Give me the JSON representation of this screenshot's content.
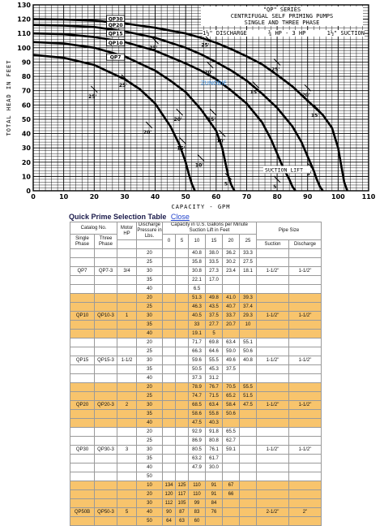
{
  "chart_data": {
    "type": "line",
    "title_lines": [
      "\"QP\" SERIES",
      "CENTRIFUGAL SELF PRIMING PUMPS",
      "SINGLE AND THREE PHASE"
    ],
    "discharge_label": "1½\" DISCHARGE",
    "hp_label": "¾ HP - 3 HP",
    "suction_label": "1½\" SUCTION",
    "xlabel": "CAPACITY - GPM",
    "ylabel": "TOTAL HEAD IN FEET",
    "xlim": [
      0,
      110
    ],
    "ylim": [
      0,
      130
    ],
    "x_ticks": [
      "0",
      "10",
      "20",
      "30",
      "40",
      "50",
      "60",
      "70",
      "80",
      "90",
      "100",
      "110"
    ],
    "y_ticks": [
      "0",
      "10",
      "20",
      "30",
      "40",
      "50",
      "60",
      "70",
      "80",
      "90",
      "100",
      "110",
      "120",
      "130"
    ],
    "grid": true,
    "suction_lift_label": "SUCTION LIFT",
    "watermark": "ZUNOBIE",
    "series": [
      {
        "name": "QP30",
        "x": [
          0,
          10,
          20,
          30,
          40,
          50,
          55,
          60,
          65,
          70,
          75,
          80,
          85,
          90,
          95,
          98,
          100,
          101,
          102,
          103
        ],
        "y": [
          120,
          119.8,
          119,
          117,
          114,
          110,
          107,
          103.5,
          99,
          94,
          88.5,
          81,
          73,
          63,
          53,
          44,
          30,
          18,
          6,
          0
        ]
      },
      {
        "name": "QP20",
        "x": [
          0,
          10,
          20,
          30,
          40,
          50,
          55,
          60,
          65,
          70,
          75,
          80,
          85,
          88,
          90,
          92,
          93,
          94,
          95
        ],
        "y": [
          116,
          115.6,
          114.5,
          111.5,
          107,
          100,
          95.5,
          90,
          84,
          77,
          68,
          58,
          45,
          34,
          24,
          14,
          8,
          3,
          0
        ]
      },
      {
        "name": "QP15",
        "x": [
          0,
          10,
          20,
          30,
          40,
          50,
          55,
          60,
          65,
          70,
          75,
          78,
          80,
          82,
          84,
          85,
          86
        ],
        "y": [
          110,
          109.5,
          107.5,
          104,
          98,
          89,
          84,
          78,
          70,
          61,
          48,
          36,
          26,
          16,
          8,
          3,
          0
        ]
      },
      {
        "name": "QP10",
        "x": [
          0,
          10,
          20,
          30,
          40,
          45,
          50,
          55,
          60,
          62,
          63,
          64,
          65,
          66
        ],
        "y": [
          104,
          103,
          100,
          94,
          84,
          77,
          69,
          57,
          42,
          30,
          20,
          10,
          4,
          0
        ]
      },
      {
        "name": "QP7",
        "x": [
          0,
          10,
          20,
          30,
          35,
          40,
          45,
          48,
          50,
          51,
          52,
          53
        ],
        "y": [
          95,
          93,
          88,
          78,
          71,
          61,
          45,
          32,
          20,
          12,
          5,
          0
        ]
      }
    ],
    "lift_markers": [
      {
        "label": "25'",
        "x": 40,
        "y": 105
      },
      {
        "label": "25'",
        "x": 57,
        "y": 107
      },
      {
        "label": "25'",
        "x": 80,
        "y": 90
      },
      {
        "label": "25'",
        "x": 30,
        "y": 79
      },
      {
        "label": "25'",
        "x": 20,
        "y": 71
      },
      {
        "label": "20'",
        "x": 58,
        "y": 88
      },
      {
        "label": "20'",
        "x": 90,
        "y": 72
      },
      {
        "label": "20'",
        "x": 48,
        "y": 55
      },
      {
        "label": "20'",
        "x": 38,
        "y": 46
      },
      {
        "label": "15'",
        "x": 73,
        "y": 74
      },
      {
        "label": "15'",
        "x": 59,
        "y": 55
      },
      {
        "label": "15'",
        "x": 49,
        "y": 35
      },
      {
        "label": "15'",
        "x": 93,
        "y": 58
      },
      {
        "label": "10'",
        "x": 62,
        "y": 40
      },
      {
        "label": "10'",
        "x": 55,
        "y": 23
      },
      {
        "label": "5'",
        "x": 91,
        "y": 17
      },
      {
        "label": "5'",
        "x": 80,
        "y": 8
      },
      {
        "label": "5'",
        "x": 64,
        "y": 10
      }
    ]
  },
  "selection_table": {
    "title": "Quick Prime Selection Table",
    "close_link": "Close",
    "headers": {
      "catalog_no": "Catalog No.",
      "single_phase": "Single Phase",
      "three_phase": "Three Phase",
      "motor_hp": "Motor HP",
      "discharge_pressure": "Discharge Pressure in Lbs.",
      "capacity": "Capacity in U.S. Gallons per Minute Suction Lift in Feet",
      "lifts": [
        "0",
        "5",
        "10",
        "15",
        "20",
        "25"
      ],
      "pipe_size": "Pipe Size",
      "suction": "Suction",
      "discharge": "Discharge"
    },
    "groups": [
      {
        "single": "QP7",
        "three": "QP7-3",
        "hp": "3/4",
        "suction": "1-1/2\"",
        "discharge": "1-1/2\"",
        "color": "white",
        "label_row": 2,
        "rows": [
          [
            "20",
            "",
            "",
            "40.8",
            "38.0",
            "36.2",
            "33.3"
          ],
          [
            "25",
            "",
            "",
            "35.8",
            "33.5",
            "30.2",
            "27.5"
          ],
          [
            "30",
            "",
            "",
            "30.8",
            "27.3",
            "23.4",
            "18.1"
          ],
          [
            "35",
            "",
            "",
            "22.1",
            "17.0",
            "",
            ""
          ],
          [
            "40",
            "",
            "",
            "6.5",
            "",
            "",
            ""
          ]
        ]
      },
      {
        "single": "QP10",
        "three": "QP10-3",
        "hp": "1",
        "suction": "1-1/2\"",
        "discharge": "1-1/2\"",
        "color": "orange",
        "label_row": 2,
        "rows": [
          [
            "20",
            "",
            "",
            "51.3",
            "49.8",
            "41.0",
            "39.3"
          ],
          [
            "25",
            "",
            "",
            "46.3",
            "43.5",
            "40.7",
            "37.4"
          ],
          [
            "30",
            "",
            "",
            "40.5",
            "37.5",
            "33.7",
            "29.3"
          ],
          [
            "35",
            "",
            "",
            "33",
            "27.7",
            "20.7",
            "10"
          ],
          [
            "40",
            "",
            "",
            "19.1",
            "5",
            "",
            ""
          ]
        ]
      },
      {
        "single": "QP15",
        "three": "QP15-3",
        "hp": "1-1/2",
        "suction": "1-1/2\"",
        "discharge": "1-1/2\"",
        "color": "white",
        "label_row": 2,
        "rows": [
          [
            "20",
            "",
            "",
            "71.7",
            "69.8",
            "63.4",
            "55.1"
          ],
          [
            "25",
            "",
            "",
            "66.3",
            "64.6",
            "59.0",
            "50.6"
          ],
          [
            "30",
            "",
            "",
            "59.6",
            "55.5",
            "49.6",
            "40.8"
          ],
          [
            "35",
            "",
            "",
            "50.5",
            "45.3",
            "37.5",
            ""
          ],
          [
            "40",
            "",
            "",
            "37.3",
            "31.2",
            "",
            ""
          ]
        ]
      },
      {
        "single": "QP20",
        "three": "QP20-3",
        "hp": "2",
        "suction": "1-1/2\"",
        "discharge": "1-1/2\"",
        "color": "orange",
        "label_row": 2,
        "rows": [
          [
            "20",
            "",
            "",
            "78.9",
            "76.7",
            "70.5",
            "55.5"
          ],
          [
            "25",
            "",
            "",
            "74.7",
            "71.5",
            "65.2",
            "51.5"
          ],
          [
            "30",
            "",
            "",
            "68.5",
            "63.4",
            "58.4",
            "47.5"
          ],
          [
            "35",
            "",
            "",
            "58.6",
            "55.8",
            "50.6",
            ""
          ],
          [
            "40",
            "",
            "",
            "47.5",
            "40.3",
            "",
            ""
          ]
        ]
      },
      {
        "single": "QP30",
        "three": "QP30-3",
        "hp": "3",
        "suction": "1-1/2\"",
        "discharge": "1-1/2\"",
        "color": "white",
        "label_row": 2,
        "rows": [
          [
            "20",
            "",
            "",
            "92.9",
            "91.8",
            "65.5",
            ""
          ],
          [
            "25",
            "",
            "",
            "86.9",
            "80.8",
            "62.7",
            ""
          ],
          [
            "30",
            "",
            "",
            "80.5",
            "76.1",
            "59.1",
            ""
          ],
          [
            "35",
            "",
            "",
            "63.2",
            "61.7",
            "",
            ""
          ],
          [
            "40",
            "",
            "",
            "47.9",
            "30.0",
            "",
            ""
          ],
          [
            "50",
            "",
            "",
            "",
            "",
            "",
            ""
          ]
        ]
      },
      {
        "single": "QP50B",
        "three": "QP50-3",
        "hp": "5",
        "suction": "2-1/2\"",
        "discharge": "2\"",
        "color": "orange",
        "label_row": 3,
        "rows": [
          [
            "10",
            "134",
            "125",
            "110",
            "91",
            "67",
            ""
          ],
          [
            "20",
            "120",
            "117",
            "110",
            "91",
            "66",
            ""
          ],
          [
            "30",
            "112",
            "105",
            "99",
            "84",
            "",
            ""
          ],
          [
            "40",
            "90",
            "87",
            "83",
            "76",
            "",
            ""
          ],
          [
            "50",
            "64",
            "63",
            "60",
            "",
            "",
            ""
          ]
        ]
      }
    ]
  }
}
